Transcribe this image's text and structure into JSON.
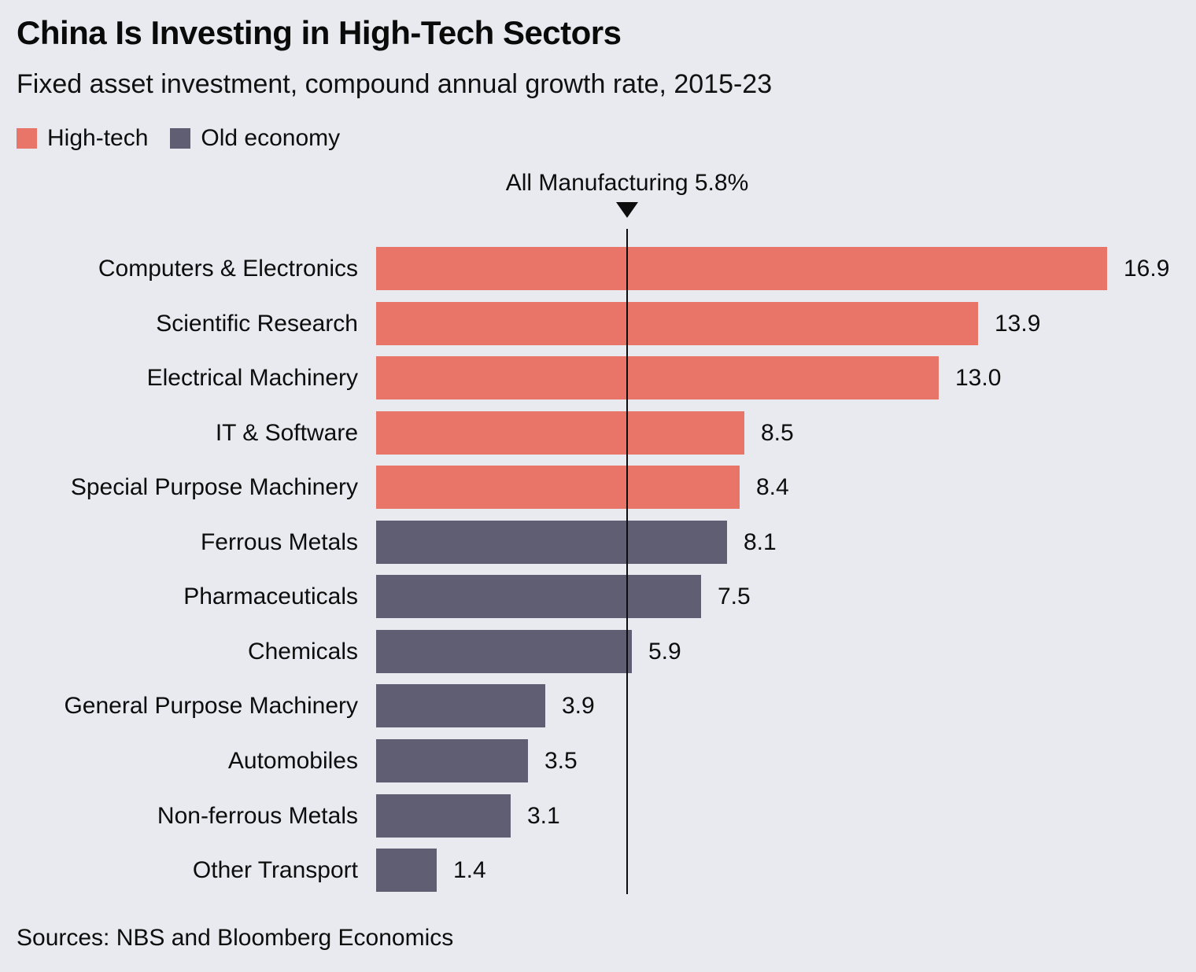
{
  "header": {
    "title": "China Is Investing in High-Tech Sectors",
    "subtitle": "Fixed asset investment, compound annual growth rate, 2015-23"
  },
  "legend": {
    "items": [
      {
        "label": "High-tech",
        "key": "high_tech",
        "color": "#e97568"
      },
      {
        "label": "Old economy",
        "key": "old_economy",
        "color": "#605e73"
      }
    ]
  },
  "annotation": {
    "label": "All Manufacturing 5.8%",
    "value": 5.8
  },
  "footer": {
    "source": "Sources: NBS and Bloomberg Economics"
  },
  "colors": {
    "background": "#e9eaf0",
    "high_tech": "#e97568",
    "old_economy": "#605e73",
    "reference_line": "#0d0d0d",
    "text": "#0d0d0d"
  },
  "chart_data": {
    "type": "bar",
    "orientation": "horizontal",
    "title": "China Is Investing in High-Tech Sectors",
    "subtitle": "Fixed asset investment, compound annual growth rate, 2015-23",
    "value_unit": "% compound annual growth rate 2015-23",
    "xlim": [
      0,
      18
    ],
    "grid": false,
    "legend_position": "top-left",
    "reference_line": {
      "label": "All Manufacturing",
      "value": 5.8,
      "display": "All Manufacturing 5.8%"
    },
    "series_colors": {
      "high_tech": "#e97568",
      "old_economy": "#605e73"
    },
    "bars": [
      {
        "label": "Computers & Electronics",
        "value": 16.9,
        "display": "16.9",
        "series": "high_tech"
      },
      {
        "label": "Scientific Research",
        "value": 13.9,
        "display": "13.9",
        "series": "high_tech"
      },
      {
        "label": "Electrical Machinery",
        "value": 13.0,
        "display": "13.0",
        "series": "high_tech"
      },
      {
        "label": "IT & Software",
        "value": 8.5,
        "display": "8.5",
        "series": "high_tech"
      },
      {
        "label": "Special Purpose Machinery",
        "value": 8.4,
        "display": "8.4",
        "series": "high_tech"
      },
      {
        "label": "Ferrous Metals",
        "value": 8.1,
        "display": "8.1",
        "series": "old_economy"
      },
      {
        "label": "Pharmaceuticals",
        "value": 7.5,
        "display": "7.5",
        "series": "old_economy"
      },
      {
        "label": "Chemicals",
        "value": 5.9,
        "display": "5.9",
        "series": "old_economy"
      },
      {
        "label": "General Purpose Machinery",
        "value": 3.9,
        "display": "3.9",
        "series": "old_economy"
      },
      {
        "label": "Automobiles",
        "value": 3.5,
        "display": "3.5",
        "series": "old_economy"
      },
      {
        "label": "Non-ferrous Metals",
        "value": 3.1,
        "display": "3.1",
        "series": "old_economy"
      },
      {
        "label": "Other Transport",
        "value": 1.4,
        "display": "1.4",
        "series": "old_economy"
      }
    ]
  }
}
